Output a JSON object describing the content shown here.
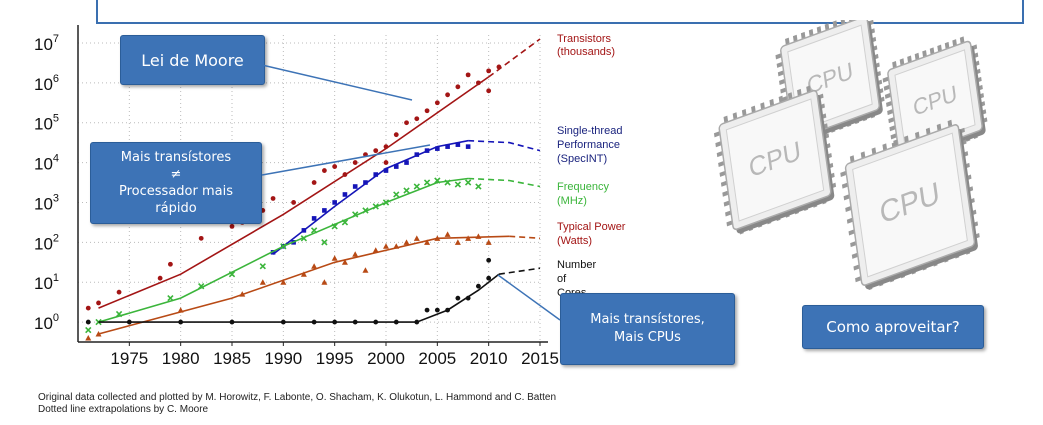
{
  "chart_data": {
    "type": "scatter",
    "title": "",
    "xlabel": "",
    "ylabel": "",
    "y_scale": "log",
    "xlim": [
      1970,
      2015
    ],
    "ylim_exponent": [
      -0.5,
      7.2
    ],
    "x_ticks": [
      1975,
      1980,
      1985,
      1990,
      1995,
      2000,
      2005,
      2010,
      2015
    ],
    "y_ticks": [
      {
        "label": "10",
        "exp": "0",
        "value": 0
      },
      {
        "label": "10",
        "exp": "1",
        "value": 1
      },
      {
        "label": "10",
        "exp": "2",
        "value": 2
      },
      {
        "label": "10",
        "exp": "3",
        "value": 3
      },
      {
        "label": "10",
        "exp": "4",
        "value": 4
      },
      {
        "label": "10",
        "exp": "5",
        "value": 5
      },
      {
        "label": "10",
        "exp": "6",
        "value": 6
      },
      {
        "label": "10",
        "exp": "7",
        "value": 7
      }
    ],
    "grid": true,
    "series": [
      {
        "name": "Transistors (thousands)",
        "legend": [
          "Transistors",
          "(thousands)"
        ],
        "color": "#a31515",
        "marker": "circle",
        "trend": [
          [
            1972,
            0.35
          ],
          [
            1980,
            1.2
          ],
          [
            1990,
            2.7
          ],
          [
            2000,
            4.35
          ],
          [
            2010,
            6.15
          ]
        ],
        "extrapolation": [
          [
            2010,
            6.15
          ],
          [
            2015,
            7.1
          ]
        ],
        "points": [
          [
            1971,
            0.35
          ],
          [
            1972,
            0.48
          ],
          [
            1974,
            0.75
          ],
          [
            1978,
            1.1
          ],
          [
            1979,
            1.45
          ],
          [
            1982,
            2.1
          ],
          [
            1985,
            2.4
          ],
          [
            1986,
            2.5
          ],
          [
            1988,
            2.8
          ],
          [
            1989,
            3.1
          ],
          [
            1991,
            3.0
          ],
          [
            1993,
            3.5
          ],
          [
            1994,
            3.8
          ],
          [
            1995,
            3.9
          ],
          [
            1996,
            3.7
          ],
          [
            1997,
            4.0
          ],
          [
            1998,
            4.2
          ],
          [
            1999,
            4.3
          ],
          [
            2000,
            4.4
          ],
          [
            2000,
            4.0
          ],
          [
            2001,
            4.7
          ],
          [
            2002,
            5.0
          ],
          [
            2003,
            5.1
          ],
          [
            2004,
            5.3
          ],
          [
            2005,
            5.5
          ],
          [
            2006,
            5.7
          ],
          [
            2007,
            5.9
          ],
          [
            2008,
            6.2
          ],
          [
            2009,
            6.0
          ],
          [
            2010,
            6.3
          ],
          [
            2010,
            5.8
          ],
          [
            2011,
            6.4
          ]
        ]
      },
      {
        "name": "Single-thread Performance (SpecINT)",
        "legend": [
          "Single-thread",
          "Performance",
          "(SpecINT)"
        ],
        "color": "#1515b8",
        "marker": "square",
        "trend": [
          [
            1989,
            1.7
          ],
          [
            1995,
            2.9
          ],
          [
            2000,
            3.85
          ],
          [
            2005,
            4.4
          ],
          [
            2008,
            4.55
          ]
        ],
        "extrapolation": [
          [
            2008,
            4.55
          ],
          [
            2012,
            4.5
          ],
          [
            2015,
            4.3
          ]
        ],
        "points": [
          [
            1989,
            1.75
          ],
          [
            1990,
            1.9
          ],
          [
            1991,
            2.0
          ],
          [
            1992,
            2.3
          ],
          [
            1993,
            2.6
          ],
          [
            1994,
            2.8
          ],
          [
            1995,
            3.0
          ],
          [
            1996,
            3.2
          ],
          [
            1997,
            3.4
          ],
          [
            1998,
            3.5
          ],
          [
            1999,
            3.7
          ],
          [
            2000,
            3.8
          ],
          [
            2001,
            3.9
          ],
          [
            2002,
            4.0
          ],
          [
            2003,
            4.2
          ],
          [
            2004,
            4.3
          ],
          [
            2005,
            4.35
          ],
          [
            2006,
            4.4
          ],
          [
            2007,
            4.45
          ],
          [
            2008,
            4.4
          ]
        ]
      },
      {
        "name": "Frequency (MHz)",
        "legend": [
          "Frequency",
          "(MHz)"
        ],
        "color": "#3bb53b",
        "marker": "cross",
        "trend": [
          [
            1972,
            0.0
          ],
          [
            1980,
            0.6
          ],
          [
            1990,
            1.9
          ],
          [
            2000,
            3.0
          ],
          [
            2005,
            3.5
          ],
          [
            2008,
            3.6
          ]
        ],
        "extrapolation": [
          [
            2008,
            3.6
          ],
          [
            2012,
            3.55
          ],
          [
            2015,
            3.4
          ]
        ],
        "points": [
          [
            1971,
            -0.2
          ],
          [
            1972,
            0.0
          ],
          [
            1974,
            0.2
          ],
          [
            1979,
            0.6
          ],
          [
            1982,
            0.9
          ],
          [
            1985,
            1.2
          ],
          [
            1988,
            1.4
          ],
          [
            1990,
            1.9
          ],
          [
            1992,
            2.1
          ],
          [
            1993,
            2.3
          ],
          [
            1994,
            2.0
          ],
          [
            1995,
            2.4
          ],
          [
            1996,
            2.5
          ],
          [
            1997,
            2.7
          ],
          [
            1998,
            2.8
          ],
          [
            1999,
            2.9
          ],
          [
            2000,
            3.0
          ],
          [
            2001,
            3.2
          ],
          [
            2002,
            3.3
          ],
          [
            2003,
            3.4
          ],
          [
            2004,
            3.5
          ],
          [
            2005,
            3.55
          ],
          [
            2006,
            3.5
          ],
          [
            2007,
            3.45
          ],
          [
            2008,
            3.5
          ],
          [
            2009,
            3.4
          ]
        ]
      },
      {
        "name": "Typical Power (Watts)",
        "legend": [
          "Typical Power",
          "(Watts)"
        ],
        "color": "#b84a15",
        "marker": "triangle",
        "trend": [
          [
            1972,
            -0.3
          ],
          [
            1985,
            0.6
          ],
          [
            1995,
            1.5
          ],
          [
            2005,
            2.1
          ],
          [
            2012,
            2.15
          ]
        ],
        "extrapolation": [
          [
            2012,
            2.15
          ],
          [
            2015,
            2.1
          ]
        ],
        "points": [
          [
            1971,
            -0.4
          ],
          [
            1972,
            -0.3
          ],
          [
            1980,
            0.3
          ],
          [
            1986,
            0.7
          ],
          [
            1988,
            1.0
          ],
          [
            1990,
            1.0
          ],
          [
            1992,
            1.2
          ],
          [
            1993,
            1.4
          ],
          [
            1994,
            1.0
          ],
          [
            1995,
            1.6
          ],
          [
            1996,
            1.5
          ],
          [
            1997,
            1.7
          ],
          [
            1998,
            1.3
          ],
          [
            1999,
            1.8
          ],
          [
            2000,
            1.9
          ],
          [
            2001,
            1.9
          ],
          [
            2002,
            2.0
          ],
          [
            2003,
            2.1
          ],
          [
            2004,
            2.0
          ],
          [
            2005,
            2.1
          ],
          [
            2006,
            2.2
          ],
          [
            2007,
            2.0
          ],
          [
            2008,
            2.1
          ],
          [
            2009,
            2.15
          ],
          [
            2010,
            2.0
          ]
        ]
      },
      {
        "name": "Number of Cores",
        "legend": [
          "Number",
          "of",
          "Cores"
        ],
        "color": "#111111",
        "marker": "circle",
        "trend": [
          [
            1972,
            0.0
          ],
          [
            2003,
            0.0
          ],
          [
            2006,
            0.3
          ],
          [
            2009,
            0.8
          ],
          [
            2011,
            1.2
          ]
        ],
        "extrapolation": [
          [
            2011,
            1.2
          ],
          [
            2015,
            1.35
          ]
        ],
        "points": [
          [
            1971,
            0.0
          ],
          [
            1975,
            0.0
          ],
          [
            1980,
            0.0
          ],
          [
            1985,
            0.0
          ],
          [
            1990,
            0.0
          ],
          [
            1993,
            0.0
          ],
          [
            1995,
            0.0
          ],
          [
            1997,
            0.0
          ],
          [
            1999,
            0.0
          ],
          [
            2001,
            0.0
          ],
          [
            2003,
            0.0
          ],
          [
            2004,
            0.3
          ],
          [
            2005,
            0.3
          ],
          [
            2006,
            0.3
          ],
          [
            2007,
            0.6
          ],
          [
            2008,
            0.6
          ],
          [
            2009,
            0.9
          ],
          [
            2010,
            1.1
          ],
          [
            2010,
            1.55
          ]
        ]
      }
    ]
  },
  "callouts": {
    "moore": "Lei de Moore",
    "transistors_not_faster": [
      "Mais transístores",
      "≠",
      "Processador mais",
      "rápido"
    ],
    "more_cpus": [
      "Mais transístores,",
      "Mais CPUs"
    ],
    "how_to_use": "Como aproveitar?"
  },
  "credits": {
    "line1": "Original data collected and plotted by M. Horowitz, F. Labonte, O. Shacham, K. Olukotun, L. Hammond and C. Batten",
    "line2": "Dotted line extrapolations by C. Moore"
  },
  "cpu_image": {
    "chip_label": "CPU",
    "chip_count": 4,
    "chip_color": "#eeeeee"
  }
}
